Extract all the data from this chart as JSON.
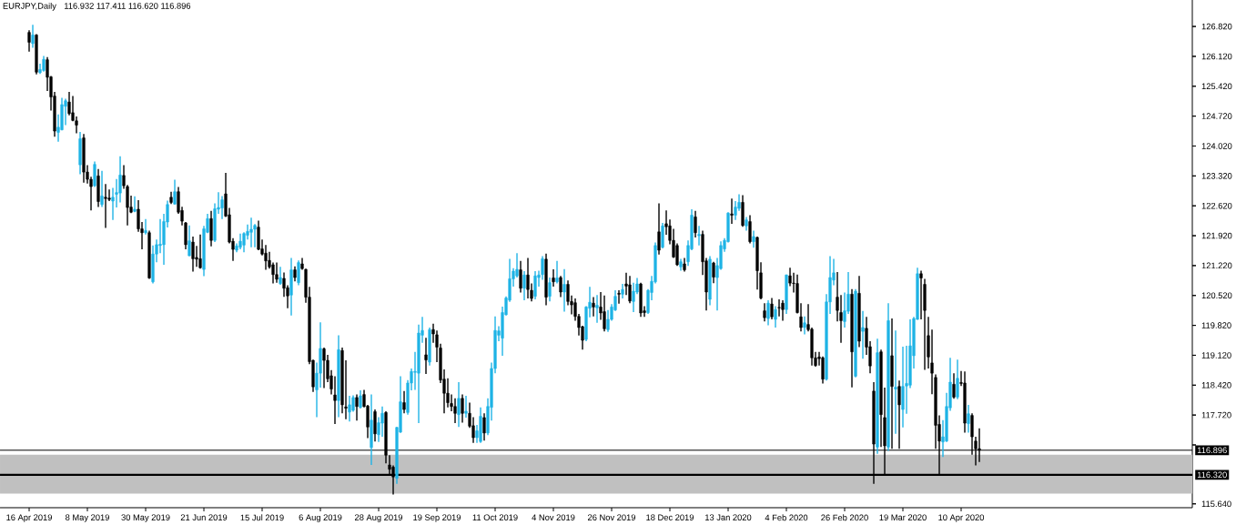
{
  "chart_data": {
    "type": "candlestick",
    "title": "EURJPY,Daily",
    "subtitle": "116.932 117.411 116.620 116.896",
    "categories": [
      "16 Apr 2019",
      null,
      null,
      null,
      null,
      null,
      null,
      null,
      null,
      null,
      null,
      null,
      null,
      null,
      null,
      null,
      "8 May 2019",
      null,
      null,
      null,
      null,
      null,
      null,
      null,
      null,
      null,
      null,
      null,
      null,
      null,
      null,
      null,
      "30 May 2019",
      null,
      null,
      null,
      null,
      null,
      null,
      null,
      null,
      null,
      null,
      null,
      null,
      null,
      null,
      null,
      "21 Jun 2019",
      null,
      null,
      null,
      null,
      null,
      null,
      null,
      null,
      null,
      null,
      null,
      null,
      null,
      null,
      null,
      "15 Jul 2019",
      null,
      null,
      null,
      null,
      null,
      null,
      null,
      null,
      null,
      null,
      null,
      null,
      null,
      null,
      null,
      "6 Aug 2019",
      null,
      null,
      null,
      null,
      null,
      null,
      null,
      null,
      null,
      null,
      null,
      null,
      null,
      null,
      null,
      "28 Aug 2019",
      null,
      null,
      null,
      null,
      null,
      null,
      null,
      null,
      null,
      null,
      null,
      null,
      null,
      null,
      null,
      "19 Sep 2019",
      null,
      null,
      null,
      null,
      null,
      null,
      null,
      null,
      null,
      null,
      null,
      null,
      null,
      null,
      null,
      "11 Oct 2019",
      null,
      null,
      null,
      null,
      null,
      null,
      null,
      null,
      null,
      null,
      null,
      null,
      null,
      null,
      null,
      "4 Nov 2019",
      null,
      null,
      null,
      null,
      null,
      null,
      null,
      null,
      null,
      null,
      null,
      null,
      null,
      null,
      null,
      "26 Nov 2019",
      null,
      null,
      null,
      null,
      null,
      null,
      null,
      null,
      null,
      null,
      null,
      null,
      null,
      null,
      null,
      "18 Dec 2019",
      null,
      null,
      null,
      null,
      null,
      null,
      null,
      null,
      null,
      null,
      null,
      null,
      null,
      null,
      null,
      "13 Jan 2020",
      null,
      null,
      null,
      null,
      null,
      null,
      null,
      null,
      null,
      null,
      null,
      null,
      null,
      null,
      null,
      "4 Feb 2020",
      null,
      null,
      null,
      null,
      null,
      null,
      null,
      null,
      null,
      null,
      null,
      null,
      null,
      null,
      null,
      "26 Feb 2020",
      null,
      null,
      null,
      null,
      null,
      null,
      null,
      null,
      null,
      null,
      null,
      null,
      null,
      null,
      null,
      "19 Mar 2020",
      null,
      null,
      null,
      null,
      null,
      null,
      null,
      null,
      null,
      null,
      null,
      null,
      null,
      null,
      null,
      "10 Apr 2020",
      null,
      null,
      null,
      null,
      null,
      null,
      null,
      null,
      null,
      null,
      null,
      null,
      null,
      null,
      null,
      null,
      null,
      null,
      null,
      null,
      null,
      null,
      null,
      null,
      null,
      null,
      null,
      null,
      null,
      null,
      null,
      null,
      null,
      null,
      null,
      null,
      null,
      null,
      null,
      null,
      null,
      null,
      null,
      null,
      null,
      null,
      null,
      null,
      null,
      null,
      null,
      null,
      null,
      null,
      null,
      null,
      null,
      null,
      null,
      null,
      null,
      null,
      null
    ],
    "ohlc": [
      [
        126.68,
        126.73,
        126.23,
        126.45
      ],
      [
        126.42,
        126.86,
        126.32,
        126.62
      ],
      [
        126.62,
        126.64,
        125.7,
        125.75
      ],
      [
        125.74,
        125.95,
        125.71,
        125.81
      ],
      [
        125.79,
        126.13,
        125.76,
        126.05
      ],
      [
        126.04,
        126.1,
        125.31,
        125.63
      ],
      [
        125.64,
        125.66,
        124.85,
        125.17
      ],
      [
        125.19,
        125.29,
        124.24,
        124.37
      ],
      [
        124.34,
        124.76,
        124.12,
        124.46
      ],
      [
        124.4,
        125.15,
        124.39,
        124.99
      ],
      [
        124.95,
        125.13,
        124.51,
        125.08
      ],
      [
        125.05,
        125.29,
        124.74,
        124.78
      ],
      [
        124.8,
        125.19,
        124.6,
        124.62
      ],
      [
        124.61,
        124.71,
        124.32,
        124.51
      ],
      [
        123.58,
        124.35,
        123.36,
        124.19
      ],
      [
        124.21,
        124.3,
        123.16,
        123.41
      ],
      [
        123.41,
        123.57,
        123.14,
        123.24
      ],
      [
        123.24,
        123.3,
        122.51,
        123.07
      ],
      [
        123.09,
        123.66,
        123.06,
        123.59
      ],
      [
        123.32,
        123.48,
        122.59,
        122.72
      ],
      [
        122.65,
        123.44,
        122.59,
        122.85
      ],
      [
        122.82,
        123.13,
        122.1,
        122.79
      ],
      [
        122.8,
        123.0,
        122.73,
        122.77
      ],
      [
        122.73,
        123.04,
        122.29,
        122.82
      ],
      [
        122.89,
        123.25,
        122.58,
        122.93
      ],
      [
        122.92,
        123.78,
        122.7,
        123.34
      ],
      [
        123.33,
        123.57,
        123.02,
        123.09
      ],
      [
        123.07,
        123.11,
        122.16,
        122.58
      ],
      [
        122.59,
        122.86,
        122.45,
        122.47
      ],
      [
        122.49,
        122.84,
        122.47,
        122.54
      ],
      [
        122.54,
        122.75,
        122.01,
        122.08
      ],
      [
        122.08,
        122.24,
        121.6,
        121.99
      ],
      [
        121.99,
        122.31,
        121.95,
        122.04
      ],
      [
        121.99,
        122.04,
        120.91,
        120.93
      ],
      [
        120.84,
        121.69,
        120.8,
        121.49
      ],
      [
        121.49,
        121.83,
        121.3,
        121.71
      ],
      [
        121.69,
        122.31,
        121.51,
        121.72
      ],
      [
        121.71,
        122.43,
        121.24,
        122.25
      ],
      [
        122.24,
        122.74,
        122.11,
        122.65
      ],
      [
        122.82,
        122.95,
        122.66,
        122.7
      ],
      [
        122.66,
        123.23,
        122.65,
        122.95
      ],
      [
        122.95,
        123.06,
        122.43,
        122.47
      ],
      [
        122.51,
        122.6,
        122.16,
        122.26
      ],
      [
        122.22,
        122.24,
        121.6,
        121.71
      ],
      [
        121.45,
        122.16,
        121.44,
        121.8
      ],
      [
        121.77,
        121.9,
        121.08,
        121.38
      ],
      [
        121.41,
        121.68,
        121.19,
        121.37
      ],
      [
        121.38,
        121.95,
        121.15,
        121.17
      ],
      [
        121.13,
        122.15,
        120.97,
        122.08
      ],
      [
        122.0,
        122.43,
        121.98,
        122.32
      ],
      [
        122.32,
        122.5,
        121.67,
        121.81
      ],
      [
        121.81,
        122.68,
        121.77,
        122.55
      ],
      [
        122.54,
        122.94,
        122.43,
        122.58
      ],
      [
        122.57,
        122.85,
        122.31,
        122.76
      ],
      [
        122.9,
        123.39,
        122.36,
        122.38
      ],
      [
        122.41,
        122.57,
        121.74,
        121.77
      ],
      [
        121.79,
        121.86,
        121.33,
        121.6
      ],
      [
        121.58,
        121.74,
        121.53,
        121.68
      ],
      [
        121.65,
        121.97,
        121.6,
        121.79
      ],
      [
        121.7,
        122.0,
        121.53,
        121.97
      ],
      [
        121.93,
        122.18,
        121.83,
        122.02
      ],
      [
        122.0,
        122.34,
        121.65,
        122.07
      ],
      [
        122.07,
        122.19,
        121.65,
        122.16
      ],
      [
        122.12,
        122.27,
        121.58,
        121.6
      ],
      [
        121.61,
        121.83,
        121.46,
        121.49
      ],
      [
        121.51,
        121.7,
        121.12,
        121.33
      ],
      [
        121.34,
        121.54,
        121.15,
        121.19
      ],
      [
        121.24,
        121.29,
        120.8,
        121.01
      ],
      [
        121.01,
        121.29,
        120.82,
        120.9
      ],
      [
        120.8,
        121.19,
        120.77,
        120.94
      ],
      [
        120.92,
        121.06,
        120.49,
        120.69
      ],
      [
        120.7,
        120.76,
        120.22,
        120.51
      ],
      [
        120.53,
        121.4,
        120.05,
        121.12
      ],
      [
        121.12,
        121.2,
        120.85,
        120.94
      ],
      [
        120.82,
        121.34,
        120.76,
        121.29
      ],
      [
        121.26,
        121.4,
        121.12,
        121.15
      ],
      [
        121.13,
        121.15,
        120.35,
        120.48
      ],
      [
        120.48,
        120.72,
        118.91,
        118.97
      ],
      [
        119.0,
        119.02,
        118.26,
        118.38
      ],
      [
        118.31,
        118.95,
        117.67,
        118.7
      ],
      [
        118.7,
        119.89,
        118.36,
        119.28
      ],
      [
        119.27,
        119.3,
        118.35,
        119.0
      ],
      [
        119.0,
        119.13,
        118.49,
        118.57
      ],
      [
        118.64,
        118.77,
        118.2,
        118.33
      ],
      [
        118.19,
        118.63,
        117.51,
        118.06
      ],
      [
        118.06,
        119.59,
        117.67,
        119.25
      ],
      [
        119.23,
        119.3,
        117.76,
        117.96
      ],
      [
        117.91,
        119.0,
        117.62,
        117.88
      ],
      [
        117.79,
        118.17,
        117.57,
        117.96
      ],
      [
        117.83,
        118.18,
        117.8,
        118.13
      ],
      [
        118.13,
        118.2,
        117.59,
        117.92
      ],
      [
        117.9,
        118.3,
        117.87,
        118.17
      ],
      [
        118.2,
        118.31,
        117.9,
        117.92
      ],
      [
        117.93,
        117.96,
        117.18,
        117.44
      ],
      [
        116.96,
        118.2,
        116.55,
        117.6
      ],
      [
        117.8,
        117.85,
        117.1,
        117.28
      ],
      [
        117.26,
        117.67,
        117.09,
        117.54
      ],
      [
        117.53,
        117.92,
        117.21,
        117.76
      ],
      [
        117.78,
        117.81,
        116.59,
        116.78
      ],
      [
        116.55,
        116.78,
        116.32,
        116.45
      ],
      [
        116.5,
        116.54,
        115.86,
        116.27
      ],
      [
        116.24,
        117.44,
        116.11,
        117.43
      ],
      [
        117.32,
        118.63,
        117.3,
        118.03
      ],
      [
        118.01,
        118.28,
        117.76,
        117.85
      ],
      [
        117.78,
        118.54,
        117.73,
        118.47
      ],
      [
        118.47,
        118.81,
        118.3,
        118.74
      ],
      [
        118.72,
        119.2,
        118.31,
        118.74
      ],
      [
        118.7,
        119.84,
        117.53,
        119.64
      ],
      [
        119.59,
        120.02,
        119.41,
        119.7
      ],
      [
        119.13,
        119.53,
        118.68,
        119.01
      ],
      [
        118.96,
        119.77,
        118.88,
        119.72
      ],
      [
        119.72,
        119.86,
        119.41,
        119.62
      ],
      [
        119.6,
        119.7,
        118.96,
        119.31
      ],
      [
        119.29,
        119.39,
        118.47,
        118.54
      ],
      [
        118.56,
        118.79,
        117.76,
        118.23
      ],
      [
        118.23,
        118.58,
        117.9,
        118.01
      ],
      [
        117.99,
        118.2,
        117.81,
        117.92
      ],
      [
        117.92,
        118.11,
        117.53,
        117.76
      ],
      [
        117.73,
        118.49,
        117.44,
        118.11
      ],
      [
        118.11,
        118.2,
        117.54,
        117.76
      ],
      [
        117.76,
        118.17,
        117.66,
        117.81
      ],
      [
        117.76,
        118.01,
        117.42,
        117.46
      ],
      [
        117.47,
        117.67,
        117.07,
        117.19
      ],
      [
        117.19,
        117.49,
        117.07,
        117.35
      ],
      [
        117.1,
        117.9,
        117.07,
        117.69
      ],
      [
        117.66,
        117.76,
        117.12,
        117.3
      ],
      [
        117.3,
        118.11,
        117.25,
        117.92
      ],
      [
        117.9,
        118.95,
        117.59,
        118.81
      ],
      [
        118.81,
        120.03,
        118.7,
        119.7
      ],
      [
        119.59,
        119.8,
        119.45,
        119.69
      ],
      [
        119.52,
        120.26,
        119.11,
        120.12
      ],
      [
        120.07,
        120.5,
        120.05,
        120.46
      ],
      [
        120.41,
        121.38,
        120.37,
        120.91
      ],
      [
        120.91,
        121.16,
        120.73,
        121.09
      ],
      [
        120.98,
        121.51,
        120.94,
        121.13
      ],
      [
        121.12,
        121.33,
        120.59,
        120.69
      ],
      [
        120.69,
        121.09,
        120.41,
        121.0
      ],
      [
        121.0,
        121.4,
        120.45,
        120.66
      ],
      [
        120.64,
        120.8,
        120.38,
        120.45
      ],
      [
        120.5,
        121.09,
        120.43,
        120.98
      ],
      [
        120.94,
        121.1,
        120.73,
        121.0
      ],
      [
        121.01,
        121.44,
        120.89,
        121.38
      ],
      [
        121.37,
        121.5,
        120.29,
        120.48
      ],
      [
        120.5,
        120.94,
        120.38,
        120.82
      ],
      [
        120.93,
        121.13,
        120.73,
        120.84
      ],
      [
        120.84,
        121.33,
        120.8,
        120.93
      ],
      [
        120.94,
        120.98,
        120.48,
        120.6
      ],
      [
        120.6,
        121.14,
        120.14,
        120.78
      ],
      [
        120.78,
        120.87,
        120.29,
        120.38
      ],
      [
        120.38,
        120.52,
        120.08,
        120.3
      ],
      [
        120.35,
        120.45,
        119.93,
        120.03
      ],
      [
        120.03,
        120.09,
        119.58,
        119.77
      ],
      [
        119.79,
        119.81,
        119.25,
        119.47
      ],
      [
        119.49,
        120.27,
        119.45,
        120.25
      ],
      [
        120.22,
        120.72,
        120.01,
        120.36
      ],
      [
        120.34,
        120.48,
        120.03,
        120.25
      ],
      [
        120.23,
        120.53,
        119.88,
        120.29
      ],
      [
        120.25,
        120.6,
        119.95,
        120.11
      ],
      [
        120.14,
        120.52,
        119.68,
        119.74
      ],
      [
        119.72,
        120.18,
        119.67,
        119.96
      ],
      [
        119.96,
        120.32,
        119.93,
        120.25
      ],
      [
        120.18,
        120.64,
        120.16,
        120.5
      ],
      [
        120.57,
        120.64,
        120.33,
        120.55
      ],
      [
        120.55,
        120.79,
        120.45,
        120.66
      ],
      [
        120.79,
        121.05,
        120.53,
        120.74
      ],
      [
        120.77,
        120.98,
        120.34,
        120.39
      ],
      [
        120.38,
        120.82,
        120.13,
        120.62
      ],
      [
        120.6,
        120.93,
        120.55,
        120.79
      ],
      [
        120.79,
        120.82,
        120.02,
        120.11
      ],
      [
        120.16,
        120.27,
        120.02,
        120.12
      ],
      [
        120.12,
        120.67,
        120.09,
        120.64
      ],
      [
        120.59,
        120.98,
        120.41,
        120.85
      ],
      [
        120.84,
        121.76,
        120.8,
        121.69
      ],
      [
        122.01,
        122.68,
        121.48,
        121.58
      ],
      [
        121.65,
        122.22,
        121.62,
        122.15
      ],
      [
        122.2,
        122.51,
        121.94,
        122.13
      ],
      [
        122.15,
        122.3,
        121.72,
        121.81
      ],
      [
        121.81,
        122.08,
        121.4,
        121.42
      ],
      [
        121.69,
        121.74,
        121.21,
        121.24
      ],
      [
        121.19,
        121.38,
        121.1,
        121.31
      ],
      [
        121.26,
        121.4,
        121.08,
        121.12
      ],
      [
        121.31,
        121.81,
        121.21,
        121.69
      ],
      [
        121.61,
        122.54,
        121.58,
        122.4
      ],
      [
        122.36,
        122.5,
        121.88,
        121.99
      ],
      [
        121.92,
        122.15,
        121.69,
        121.95
      ],
      [
        121.95,
        122.04,
        121.0,
        121.31
      ],
      [
        121.33,
        121.4,
        120.17,
        120.6
      ],
      [
        120.43,
        121.44,
        120.29,
        121.37
      ],
      [
        121.28,
        121.31,
        120.81,
        120.95
      ],
      [
        120.94,
        121.4,
        120.17,
        121.22
      ],
      [
        121.15,
        121.79,
        121.12,
        121.69
      ],
      [
        121.61,
        121.86,
        121.54,
        121.81
      ],
      [
        121.78,
        122.47,
        121.76,
        122.45
      ],
      [
        122.43,
        122.79,
        122.2,
        122.4
      ],
      [
        122.4,
        122.73,
        122.29,
        122.59
      ],
      [
        122.56,
        122.89,
        122.5,
        122.7
      ],
      [
        122.7,
        122.87,
        122.13,
        122.16
      ],
      [
        122.15,
        122.36,
        122.04,
        122.29
      ],
      [
        122.25,
        122.4,
        121.74,
        121.78
      ],
      [
        121.78,
        122.04,
        121.64,
        121.9
      ],
      [
        121.88,
        121.9,
        120.66,
        121.1
      ],
      [
        121.05,
        121.3,
        120.43,
        120.46
      ],
      [
        120.16,
        120.34,
        119.91,
        120.0
      ],
      [
        119.98,
        120.41,
        119.82,
        120.34
      ],
      [
        120.32,
        120.46,
        119.96,
        120.02
      ],
      [
        119.96,
        120.27,
        119.77,
        120.19
      ],
      [
        120.24,
        120.43,
        120.03,
        120.23
      ],
      [
        120.34,
        120.41,
        119.93,
        120.19
      ],
      [
        120.19,
        121.01,
        120.09,
        121.0
      ],
      [
        120.98,
        121.17,
        120.74,
        120.81
      ],
      [
        120.81,
        121.05,
        120.59,
        120.8
      ],
      [
        120.8,
        121.01,
        120.1,
        120.12
      ],
      [
        120.02,
        120.34,
        119.68,
        119.77
      ],
      [
        119.77,
        120.03,
        119.61,
        119.88
      ],
      [
        119.84,
        120.32,
        119.68,
        119.72
      ],
      [
        119.73,
        119.77,
        118.88,
        119.06
      ],
      [
        119.06,
        119.2,
        118.85,
        118.88
      ],
      [
        119.08,
        119.2,
        118.88,
        119.04
      ],
      [
        119.06,
        119.09,
        118.46,
        118.56
      ],
      [
        118.56,
        120.55,
        118.53,
        120.37
      ],
      [
        120.37,
        121.44,
        120.09,
        120.94
      ],
      [
        120.88,
        121.38,
        120.76,
        121.05
      ],
      [
        120.48,
        121.07,
        119.91,
        120.17
      ],
      [
        120.12,
        120.53,
        119.41,
        119.93
      ],
      [
        119.91,
        120.59,
        119.77,
        120.16
      ],
      [
        120.15,
        121.07,
        120.09,
        120.55
      ],
      [
        120.55,
        120.67,
        118.37,
        119.2
      ],
      [
        118.63,
        120.67,
        118.6,
        120.62
      ],
      [
        120.57,
        120.98,
        119.31,
        119.45
      ],
      [
        119.68,
        120.16,
        119.04,
        119.77
      ],
      [
        119.75,
        120.02,
        119.13,
        119.31
      ],
      [
        119.32,
        119.45,
        118.7,
        118.87
      ],
      [
        118.28,
        118.49,
        116.11,
        117.04
      ],
      [
        116.97,
        119.51,
        116.81,
        119.18
      ],
      [
        119.2,
        119.25,
        116.97,
        117.73
      ],
      [
        117.66,
        118.36,
        116.33,
        117.0
      ],
      [
        116.97,
        120.34,
        116.88,
        119.93
      ],
      [
        119.11,
        119.98,
        116.93,
        118.39
      ],
      [
        118.33,
        119.7,
        117.28,
        118.37
      ],
      [
        118.39,
        118.53,
        116.93,
        117.96
      ],
      [
        117.85,
        119.32,
        117.43,
        118.39
      ],
      [
        118.4,
        119.34,
        117.75,
        118.46
      ],
      [
        118.42,
        119.96,
        118.35,
        119.34
      ],
      [
        119.11,
        120.02,
        118.81,
        119.98
      ],
      [
        119.96,
        121.17,
        119.95,
        121.03
      ],
      [
        121.03,
        121.1,
        119.96,
        120.93
      ],
      [
        120.78,
        120.91,
        118.78,
        120.17
      ],
      [
        119.58,
        120.02,
        118.81,
        119.08
      ],
      [
        118.94,
        119.72,
        118.21,
        118.7
      ],
      [
        118.6,
        118.67,
        116.93,
        117.48
      ],
      [
        117.5,
        117.71,
        116.33,
        117.11
      ],
      [
        117.09,
        117.6,
        116.74,
        117.21
      ],
      [
        117.11,
        118.24,
        117.09,
        117.92
      ],
      [
        117.89,
        119.06,
        117.82,
        118.49
      ],
      [
        118.44,
        118.7,
        118.1,
        118.14
      ],
      [
        118.14,
        119.02,
        118.09,
        118.58
      ],
      [
        118.48,
        118.75,
        118.4,
        118.46
      ],
      [
        118.47,
        118.74,
        117.31,
        117.53
      ],
      [
        117.52,
        117.96,
        117.31,
        117.75
      ],
      [
        117.71,
        117.76,
        116.79,
        117.21
      ],
      [
        117.11,
        117.21,
        116.54,
        116.93
      ],
      [
        116.932,
        117.411,
        116.62,
        116.896
      ],
      null,
      null,
      null,
      null,
      null,
      null,
      null,
      null,
      null,
      null,
      null,
      null,
      null,
      null,
      null,
      null,
      null,
      null,
      null,
      null,
      null,
      null,
      null,
      null,
      null,
      null,
      null,
      null,
      null,
      null,
      null,
      null,
      null,
      null,
      null,
      null,
      null,
      null,
      null,
      null,
      null,
      null,
      null,
      null,
      null,
      null,
      null,
      null,
      null,
      null,
      null,
      null,
      null,
      null,
      null,
      null,
      null,
      null
    ],
    "colors": [
      "#000000",
      "#1fb4e6",
      "#000000",
      "#1fb4e6",
      "#1fb4e6",
      "#000000",
      "#000000",
      "#000000",
      "#1fb4e6",
      "#1fb4e6",
      "#1fb4e6",
      "#000000",
      "#000000",
      "#000000",
      "#1fb4e6",
      "#000000",
      "#000000",
      "#000000",
      "#1fb4e6",
      "#000000",
      "#1fb4e6",
      "#000000",
      "#000000",
      "#1fb4e6",
      "#1fb4e6",
      "#1fb4e6",
      "#000000",
      "#000000",
      "#000000",
      "#1fb4e6",
      "#000000",
      "#000000",
      "#1fb4e6",
      "#000000",
      "#1fb4e6",
      "#1fb4e6",
      "#1fb4e6",
      "#1fb4e6",
      "#1fb4e6",
      "#000000",
      "#1fb4e6",
      "#000000",
      "#000000",
      "#000000",
      "#1fb4e6",
      "#000000",
      "#000000",
      "#000000",
      "#1fb4e6",
      "#1fb4e6",
      "#000000",
      "#1fb4e6",
      "#1fb4e6",
      "#1fb4e6",
      "#000000",
      "#000000",
      "#000000",
      "#1fb4e6",
      "#1fb4e6",
      "#1fb4e6",
      "#1fb4e6",
      "#1fb4e6",
      "#1fb4e6",
      "#000000",
      "#000000",
      "#000000",
      "#000000",
      "#000000",
      "#000000",
      "#1fb4e6",
      "#000000",
      "#000000",
      "#1fb4e6",
      "#000000",
      "#1fb4e6",
      "#000000",
      "#000000",
      "#000000",
      "#000000",
      "#1fb4e6",
      "#1fb4e6",
      "#000000",
      "#000000",
      "#000000",
      "#000000",
      "#1fb4e6",
      "#000000",
      "#000000",
      "#1fb4e6",
      "#1fb4e6",
      "#000000",
      "#1fb4e6",
      "#000000",
      "#000000",
      "#1fb4e6",
      "#000000",
      "#1fb4e6",
      "#1fb4e6",
      "#000000",
      "#000000",
      "#000000",
      "#1fb4e6",
      "#1fb4e6",
      "#000000",
      "#1fb4e6",
      "#1fb4e6",
      "#1fb4e6",
      "#1fb4e6",
      "#1fb4e6",
      "#000000",
      "#1fb4e6",
      "#000000",
      "#000000",
      "#000000",
      "#000000",
      "#000000",
      "#000000",
      "#000000",
      "#1fb4e6",
      "#000000",
      "#1fb4e6",
      "#000000",
      "#000000",
      "#1fb4e6",
      "#1fb4e6",
      "#000000",
      "#1fb4e6",
      "#1fb4e6",
      "#1fb4e6",
      "#1fb4e6",
      "#1fb4e6",
      "#1fb4e6",
      "#1fb4e6",
      "#1fb4e6",
      "#1fb4e6",
      "#000000",
      "#1fb4e6",
      "#000000",
      "#000000",
      "#1fb4e6",
      "#1fb4e6",
      "#1fb4e6",
      "#000000",
      "#1fb4e6",
      "#000000",
      "#1fb4e6",
      "#000000",
      "#1fb4e6",
      "#000000",
      "#000000",
      "#000000",
      "#000000",
      "#000000",
      "#1fb4e6",
      "#1fb4e6",
      "#000000",
      "#1fb4e6",
      "#000000",
      "#000000",
      "#1fb4e6",
      "#1fb4e6",
      "#1fb4e6",
      "#000000",
      "#1fb4e6",
      "#000000",
      "#000000",
      "#1fb4e6",
      "#1fb4e6",
      "#000000",
      "#000000",
      "#1fb4e6",
      "#1fb4e6",
      "#1fb4e6",
      "#000000",
      "#1fb4e6",
      "#000000",
      "#000000",
      "#000000",
      "#000000",
      "#1fb4e6",
      "#000000",
      "#1fb4e6",
      "#1fb4e6",
      "#000000",
      "#1fb4e6",
      "#000000",
      "#000000",
      "#1fb4e6",
      "#000000",
      "#1fb4e6",
      "#1fb4e6",
      "#1fb4e6",
      "#1fb4e6",
      "#000000",
      "#1fb4e6",
      "#1fb4e6",
      "#000000",
      "#1fb4e6",
      "#000000",
      "#1fb4e6",
      "#000000",
      "#000000",
      "#000000",
      "#1fb4e6",
      "#000000",
      "#1fb4e6",
      "#000000",
      "#000000",
      "#1fb4e6",
      "#000000",
      "#000000",
      "#000000",
      "#000000",
      "#1fb4e6",
      "#000000",
      "#000000",
      "#000000",
      "#000000",
      "#000000",
      "#1fb4e6",
      "#1fb4e6",
      "#1fb4e6",
      "#000000",
      "#000000",
      "#1fb4e6",
      "#1fb4e6",
      "#000000",
      "#1fb4e6",
      "#000000",
      "#1fb4e6",
      "#000000",
      "#000000",
      "#000000",
      "#1fb4e6",
      "#000000",
      "#000000",
      "#1fb4e6",
      "#000000",
      "#1fb4e6",
      "#000000",
      "#1fb4e6",
      "#1fb4e6",
      "#1fb4e6",
      "#1fb4e6",
      "#1fb4e6",
      "#000000",
      "#000000",
      "#000000",
      "#000000",
      "#000000",
      "#000000",
      "#1fb4e6",
      "#1fb4e6",
      "#1fb4e6",
      "#000000",
      "#1fb4e6",
      "#000000",
      "#000000",
      "#1fb4e6",
      "#000000",
      "#000000",
      "#000000",
      null,
      null,
      null,
      null,
      null,
      null,
      null,
      null,
      null,
      null,
      null,
      null,
      null,
      null,
      null,
      null,
      null,
      null,
      null,
      null,
      null,
      null,
      null,
      null,
      null,
      null,
      null,
      null,
      null,
      null,
      null,
      null,
      null,
      null,
      null,
      null,
      null,
      null,
      null,
      null,
      null,
      null,
      null,
      null,
      null,
      null,
      null,
      null,
      null,
      null,
      null,
      null,
      null,
      null,
      null,
      null,
      null,
      null
    ],
    "ylim": [
      115.55,
      127.44
    ],
    "yticks": [
      {
        "value": 126.82,
        "label": "126.820"
      },
      {
        "value": 126.12,
        "label": "126.120"
      },
      {
        "value": 125.42,
        "label": "125.420"
      },
      {
        "value": 124.72,
        "label": "124.720"
      },
      {
        "value": 124.02,
        "label": "124.020"
      },
      {
        "value": 123.32,
        "label": "123.320"
      },
      {
        "value": 122.62,
        "label": "122.620"
      },
      {
        "value": 121.92,
        "label": "121.920"
      },
      {
        "value": 121.22,
        "label": "121.220"
      },
      {
        "value": 120.52,
        "label": "120.520"
      },
      {
        "value": 119.82,
        "label": "119.820"
      },
      {
        "value": 119.12,
        "label": "119.120"
      },
      {
        "value": 118.42,
        "label": "118.420"
      },
      {
        "value": 117.72,
        "label": "117.720"
      },
      {
        "value": 117.02,
        "label": null
      },
      {
        "value": 115.64,
        "label": "115.640"
      }
    ],
    "ref_lines": [
      {
        "axis": "y",
        "value": 116.896,
        "label": "116.896",
        "color": "#000000"
      },
      {
        "axis": "y",
        "value": 116.32,
        "label": "116.320",
        "color": "#000000"
      }
    ],
    "bands": [
      {
        "axis": "y",
        "from": 115.88,
        "to": 116.79,
        "color": "#c0c0c0"
      }
    ]
  }
}
